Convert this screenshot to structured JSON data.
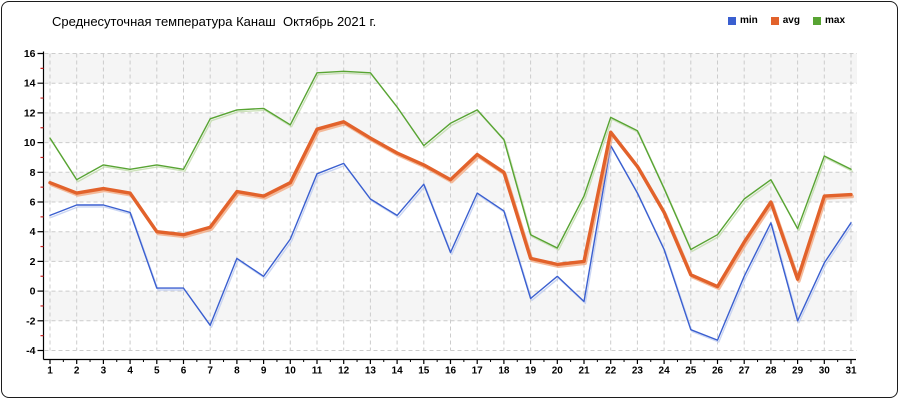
{
  "window": {
    "border_color": "#1c1c1c",
    "background": "#ffffff"
  },
  "legend": [
    {
      "label": "min",
      "color": "#3a5fd0"
    },
    {
      "label": "avg",
      "color": "#e2622b"
    },
    {
      "label": "max",
      "color": "#58a433"
    }
  ],
  "chart_data": {
    "type": "line",
    "title": "Среднесуточная температура Канаш  Октябрь 2021 г.",
    "x": [
      1,
      2,
      3,
      4,
      5,
      6,
      7,
      8,
      9,
      10,
      11,
      12,
      13,
      14,
      15,
      16,
      17,
      18,
      19,
      20,
      21,
      22,
      23,
      24,
      25,
      26,
      27,
      28,
      29,
      30,
      31
    ],
    "series": [
      {
        "name": "max",
        "color": "#58a433",
        "shadow": "#bcd8a4",
        "width": 1.4,
        "values": [
          10.3,
          7.5,
          8.5,
          8.2,
          8.5,
          8.2,
          11.6,
          12.2,
          12.3,
          11.2,
          14.7,
          14.8,
          14.7,
          12.4,
          9.8,
          11.3,
          12.2,
          10.2,
          3.8,
          2.9,
          6.4,
          11.7,
          10.8,
          6.9,
          2.8,
          3.8,
          6.2,
          7.5,
          4.2,
          9.1,
          8.2
        ]
      },
      {
        "name": "min",
        "color": "#3a5fd0",
        "shadow": "#bac8ef",
        "width": 1.4,
        "values": [
          5.1,
          5.8,
          5.8,
          5.3,
          0.2,
          0.2,
          -2.3,
          2.2,
          1.0,
          3.5,
          7.9,
          8.6,
          6.2,
          5.1,
          7.2,
          2.6,
          6.6,
          5.4,
          -0.5,
          1.0,
          -0.7,
          9.8,
          6.6,
          2.8,
          -2.6,
          -3.3,
          1.0,
          4.6,
          -2.0,
          1.9,
          4.6
        ]
      },
      {
        "name": "avg",
        "color": "#e2622b",
        "shadow": "#f2a47a",
        "width": 3.4,
        "values": [
          7.3,
          6.6,
          6.9,
          6.6,
          4.0,
          3.8,
          4.3,
          6.7,
          6.4,
          7.3,
          10.9,
          11.4,
          10.3,
          9.3,
          8.5,
          7.5,
          9.2,
          8.0,
          2.2,
          1.8,
          2.0,
          10.7,
          8.4,
          5.3,
          1.1,
          0.3,
          3.3,
          6.0,
          0.8,
          6.4,
          6.5
        ]
      }
    ],
    "ylim": [
      -4,
      16
    ],
    "y_ticks": [
      16,
      14,
      12,
      10,
      8,
      6,
      4,
      2,
      0,
      -2,
      -4
    ],
    "y_minor_ticks": [
      15,
      13,
      11,
      9,
      7,
      5,
      3,
      1,
      -1,
      -3
    ],
    "grid": "dashed",
    "grid_color": "#cccccc",
    "band_fill": "#f5f5f5",
    "axis_color": "#000000",
    "minor_tick_color": "#cc2222",
    "legend_position": "top-right"
  }
}
